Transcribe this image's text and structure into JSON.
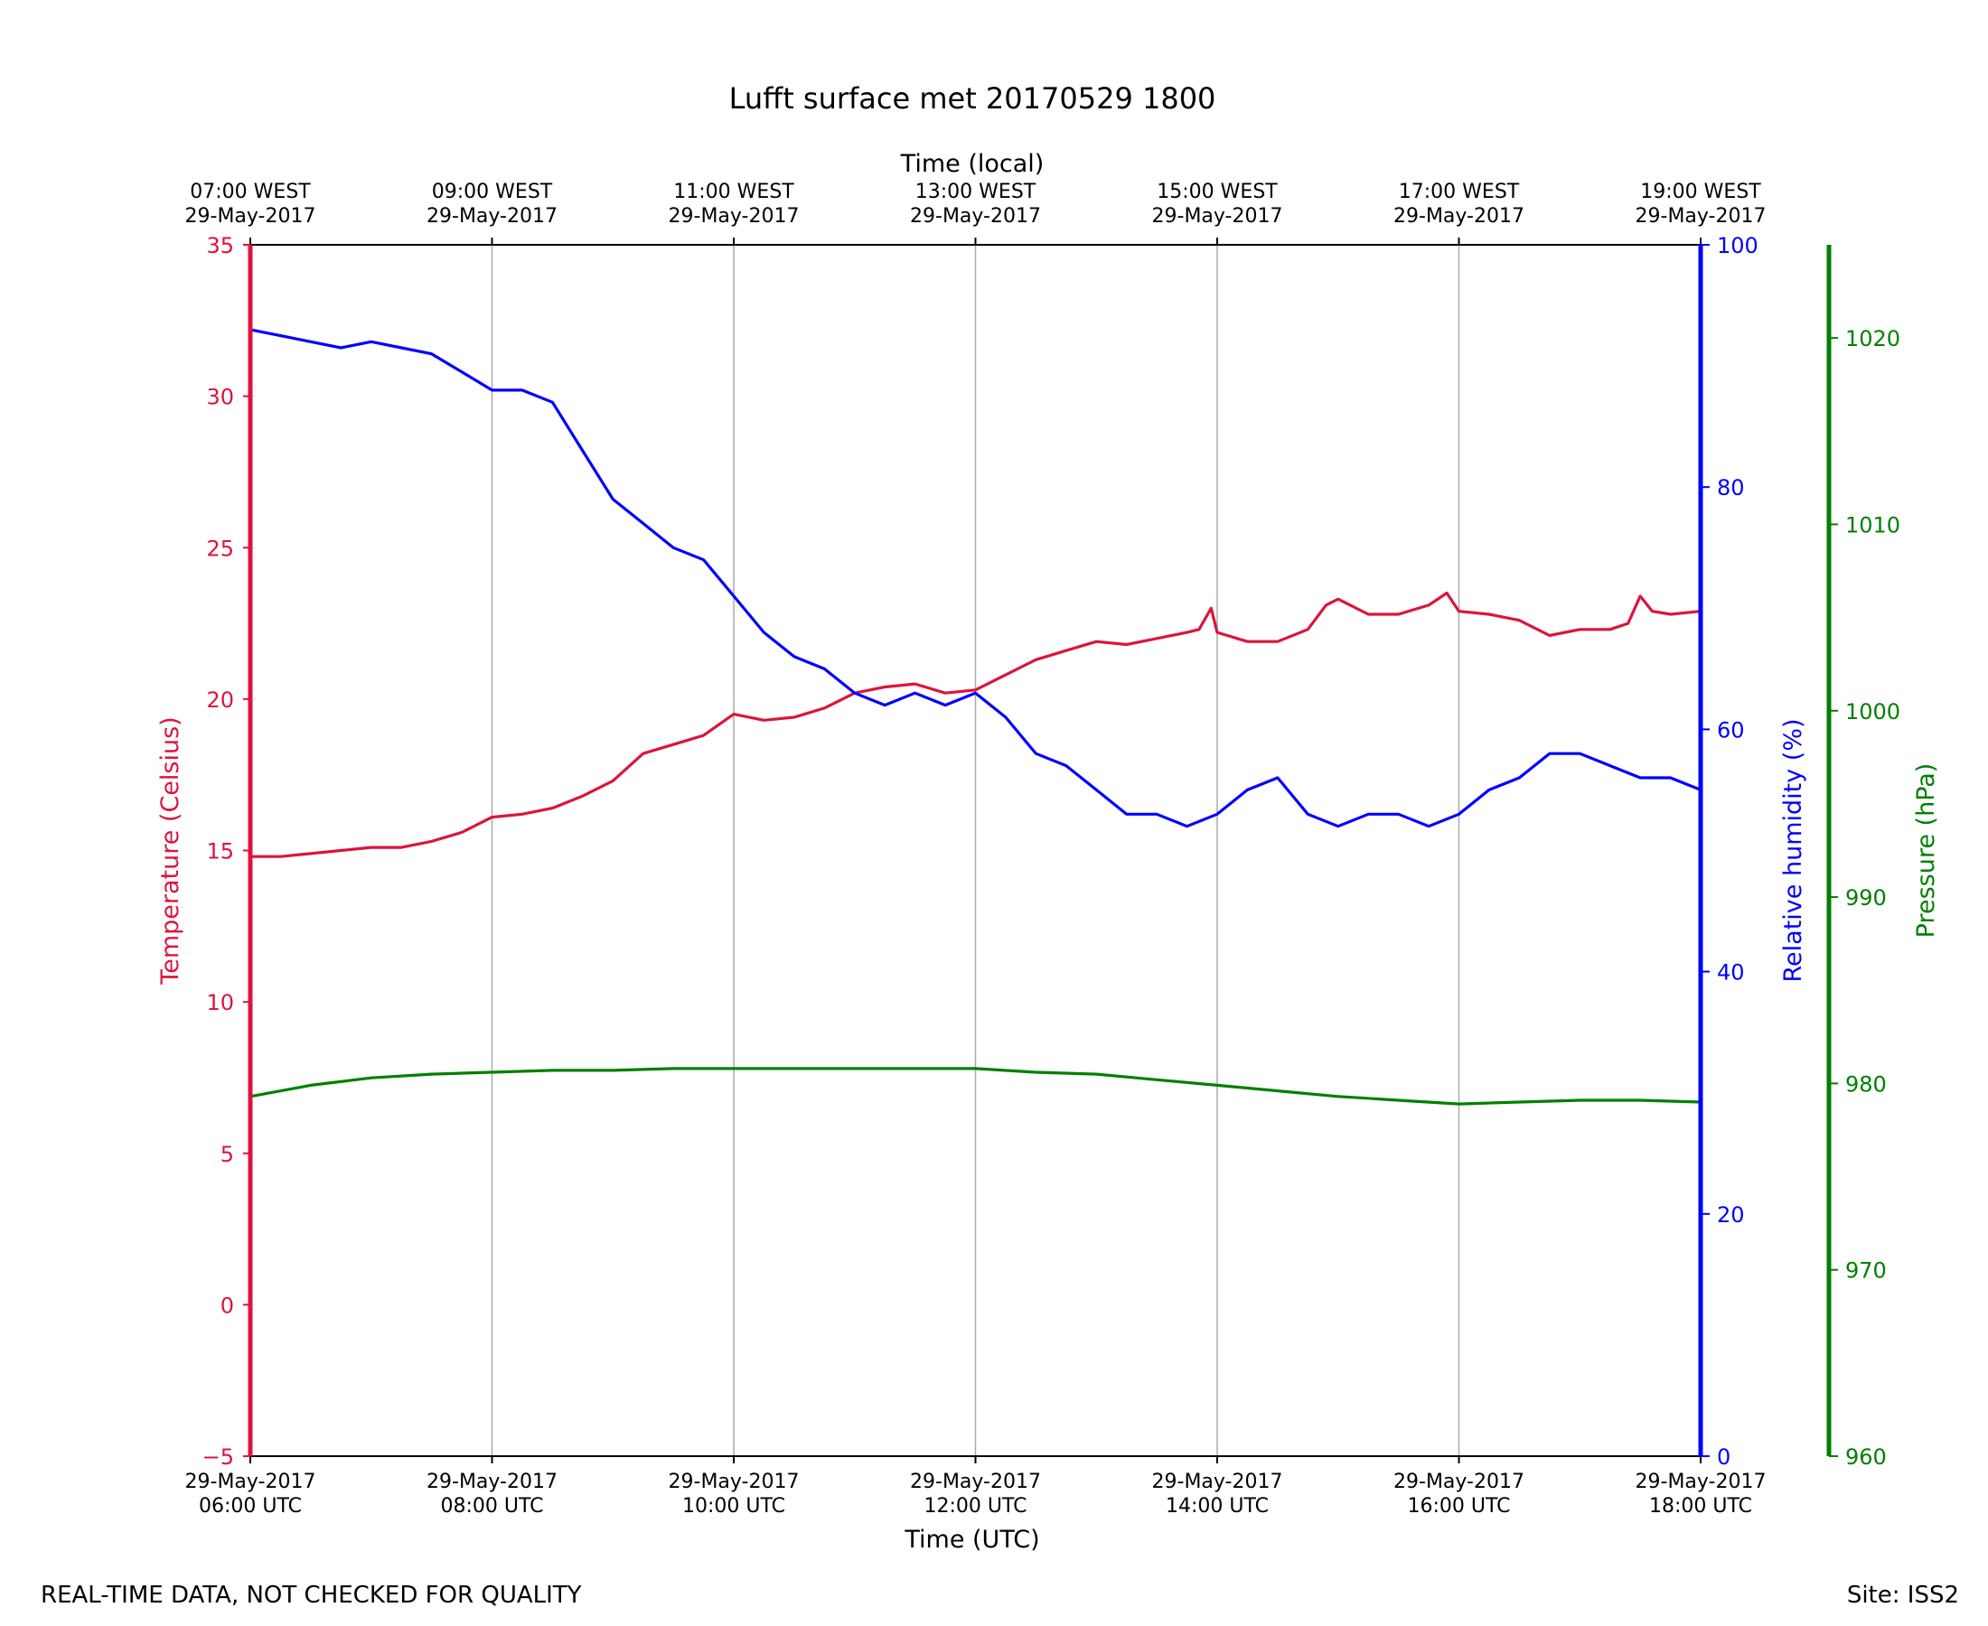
{
  "colors": {
    "temperature": "#dc143c",
    "humidity": "#0000ff",
    "pressure": "#008000",
    "grid": "#aaaaaa",
    "frame": "#000000"
  },
  "labels": {
    "title": "Lufft surface met 20170529 1800",
    "top_axis_title": "Time (local)",
    "bottom_axis_title": "Time (UTC)",
    "footer_left": "REAL-TIME DATA, NOT CHECKED FOR QUALITY",
    "footer_right": "Site: ISS2"
  },
  "chart_data": {
    "type": "line",
    "title": "Lufft surface met 20170529 1800",
    "xlabel": "Time (UTC)",
    "x2label": "Time (local)",
    "xlim_hours_utc": [
      6,
      18
    ],
    "grid": "vertical at every 2 hours",
    "x_ticks_bottom": [
      {
        "hour": 6,
        "line1": "29-May-2017",
        "line2": "06:00 UTC"
      },
      {
        "hour": 8,
        "line1": "29-May-2017",
        "line2": "08:00 UTC"
      },
      {
        "hour": 10,
        "line1": "29-May-2017",
        "line2": "10:00 UTC"
      },
      {
        "hour": 12,
        "line1": "29-May-2017",
        "line2": "12:00 UTC"
      },
      {
        "hour": 14,
        "line1": "29-May-2017",
        "line2": "14:00 UTC"
      },
      {
        "hour": 16,
        "line1": "29-May-2017",
        "line2": "16:00 UTC"
      },
      {
        "hour": 18,
        "line1": "29-May-2017",
        "line2": "18:00 UTC"
      }
    ],
    "x_ticks_top": [
      {
        "hour": 6,
        "line1": "07:00 WEST",
        "line2": "29-May-2017"
      },
      {
        "hour": 8,
        "line1": "09:00 WEST",
        "line2": "29-May-2017"
      },
      {
        "hour": 10,
        "line1": "11:00 WEST",
        "line2": "29-May-2017"
      },
      {
        "hour": 12,
        "line1": "13:00 WEST",
        "line2": "29-May-2017"
      },
      {
        "hour": 14,
        "line1": "15:00 WEST",
        "line2": "29-May-2017"
      },
      {
        "hour": 16,
        "line1": "17:00 WEST",
        "line2": "29-May-2017"
      },
      {
        "hour": 18,
        "line1": "19:00 WEST",
        "line2": "29-May-2017"
      }
    ],
    "axes": {
      "temperature": {
        "label": "Temperature (Celsius)",
        "ylim": [
          -5,
          35
        ],
        "ticks": [
          -5,
          0,
          5,
          10,
          15,
          20,
          25,
          30,
          35
        ],
        "tick_labels": [
          "−5",
          "0",
          "5",
          "10",
          "15",
          "20",
          "25",
          "30",
          "35"
        ]
      },
      "humidity": {
        "label": "Relative humidity (%)",
        "ylim": [
          0,
          100
        ],
        "ticks": [
          0,
          20,
          40,
          60,
          80,
          100
        ],
        "tick_labels": [
          "0",
          "20",
          "40",
          "60",
          "80",
          "100"
        ]
      },
      "pressure": {
        "label": "Pressure (hPa)",
        "ylim": [
          960,
          1025
        ],
        "ticks": [
          960,
          970,
          980,
          990,
          1000,
          1010,
          1020
        ],
        "tick_labels": [
          "960",
          "970",
          "980",
          "990",
          "1000",
          "1010",
          "1020"
        ]
      }
    },
    "series": [
      {
        "name": "Temperature",
        "axis": "temperature",
        "x_hours": [
          6.0,
          6.25,
          6.5,
          6.75,
          7.0,
          7.25,
          7.5,
          7.75,
          8.0,
          8.25,
          8.5,
          8.75,
          9.0,
          9.25,
          9.5,
          9.75,
          10.0,
          10.25,
          10.5,
          10.75,
          11.0,
          11.25,
          11.5,
          11.75,
          12.0,
          12.25,
          12.5,
          12.75,
          13.0,
          13.25,
          13.5,
          13.75,
          13.85,
          13.95,
          14.0,
          14.25,
          14.5,
          14.75,
          14.9,
          15.0,
          15.25,
          15.5,
          15.75,
          15.9,
          16.0,
          16.25,
          16.5,
          16.75,
          17.0,
          17.25,
          17.4,
          17.5,
          17.6,
          17.75,
          18.0
        ],
        "values": [
          14.8,
          14.8,
          14.9,
          15.0,
          15.1,
          15.1,
          15.3,
          15.6,
          16.1,
          16.2,
          16.4,
          16.8,
          17.3,
          18.2,
          18.5,
          18.8,
          19.5,
          19.3,
          19.4,
          19.7,
          20.2,
          20.4,
          20.5,
          20.2,
          20.3,
          20.8,
          21.3,
          21.6,
          21.9,
          21.8,
          22.0,
          22.2,
          22.3,
          23.0,
          22.2,
          21.9,
          21.9,
          22.3,
          23.1,
          23.3,
          22.8,
          22.8,
          23.1,
          23.5,
          22.9,
          22.8,
          22.6,
          22.1,
          22.3,
          22.3,
          22.5,
          23.4,
          22.9,
          22.8,
          22.9
        ]
      },
      {
        "name": "Relative humidity",
        "axis": "humidity",
        "x_hours": [
          6.0,
          6.25,
          6.5,
          6.75,
          7.0,
          7.25,
          7.5,
          7.75,
          8.0,
          8.25,
          8.5,
          8.75,
          9.0,
          9.25,
          9.5,
          9.75,
          10.0,
          10.25,
          10.5,
          10.75,
          11.0,
          11.25,
          11.5,
          11.75,
          12.0,
          12.25,
          12.5,
          12.75,
          13.0,
          13.25,
          13.5,
          13.75,
          14.0,
          14.25,
          14.5,
          14.75,
          15.0,
          15.25,
          15.5,
          15.75,
          16.0,
          16.25,
          16.5,
          16.75,
          17.0,
          17.25,
          17.5,
          17.75,
          18.0
        ],
        "values": [
          93.0,
          92.5,
          92.0,
          91.5,
          92.0,
          91.5,
          91.0,
          89.5,
          88.0,
          88.0,
          87.0,
          83.0,
          79.0,
          77.0,
          75.0,
          74.0,
          71.0,
          68.0,
          66.0,
          65.0,
          63.0,
          62.0,
          63.0,
          62.0,
          63.0,
          61.0,
          58.0,
          57.0,
          55.0,
          53.0,
          53.0,
          52.0,
          53.0,
          55.0,
          56.0,
          53.0,
          52.0,
          53.0,
          53.0,
          52.0,
          53.0,
          55.0,
          56.0,
          58.0,
          58.0,
          57.0,
          56.0,
          56.0,
          55.0
        ]
      },
      {
        "name": "Pressure",
        "axis": "pressure",
        "x_hours": [
          6.0,
          6.5,
          7.0,
          7.5,
          8.0,
          8.5,
          9.0,
          9.5,
          10.0,
          10.5,
          11.0,
          11.5,
          12.0,
          12.5,
          13.0,
          13.5,
          14.0,
          14.5,
          15.0,
          15.5,
          16.0,
          16.5,
          17.0,
          17.5,
          18.0
        ],
        "values": [
          979.3,
          979.9,
          980.3,
          980.5,
          980.6,
          980.7,
          980.7,
          980.8,
          980.8,
          980.8,
          980.8,
          980.8,
          980.8,
          980.6,
          980.5,
          980.2,
          979.9,
          979.6,
          979.3,
          979.1,
          978.9,
          979.0,
          979.1,
          979.1,
          979.0
        ]
      }
    ]
  }
}
